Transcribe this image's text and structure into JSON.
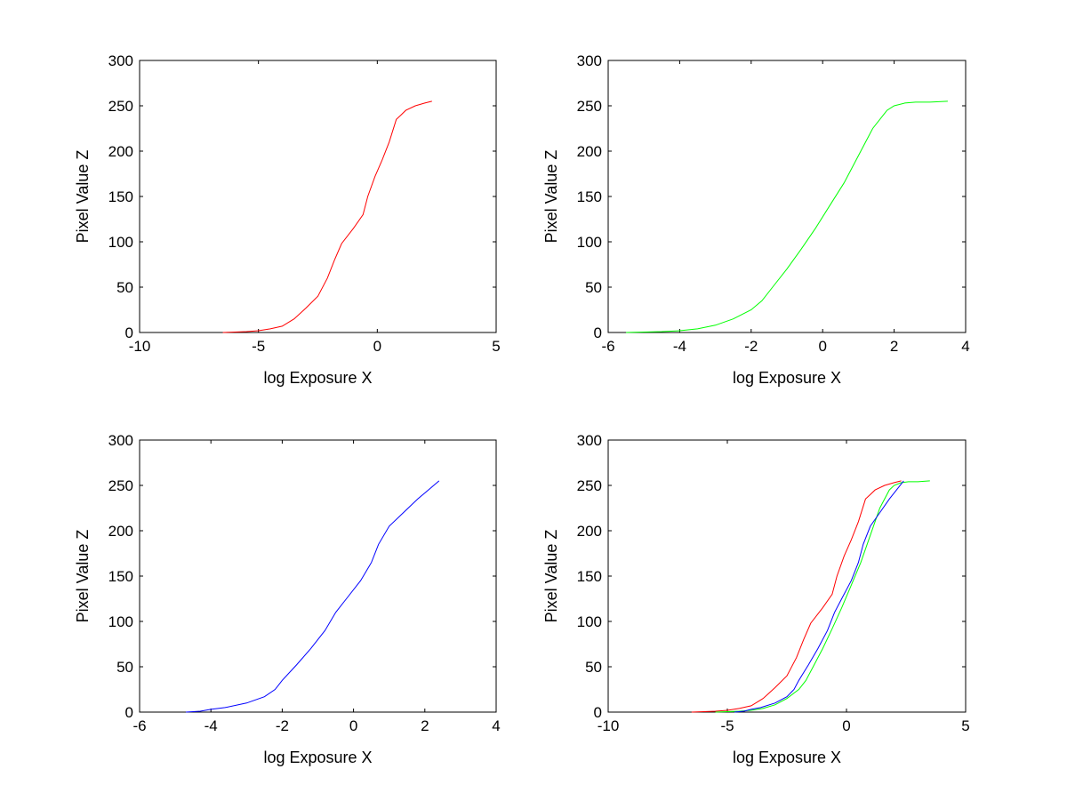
{
  "figure": {
    "background": "#ffffff"
  },
  "chart_data": [
    {
      "type": "line",
      "xlabel": "log Exposure X",
      "ylabel": "Pixel Value Z",
      "xlim": [
        -10,
        5
      ],
      "ylim": [
        0,
        300
      ],
      "xticks": [
        -10,
        -5,
        0,
        5
      ],
      "yticks": [
        0,
        50,
        100,
        150,
        200,
        250,
        300
      ],
      "grid": false,
      "series": [
        {
          "color": "#ff0000",
          "x": [
            -6.5,
            -5.5,
            -5.0,
            -4.5,
            -4.0,
            -3.5,
            -3.0,
            -2.5,
            -2.1,
            -1.8,
            -1.5,
            -1.0,
            -0.6,
            -0.4,
            -0.1,
            0.2,
            0.5,
            0.8,
            1.0,
            1.2,
            1.6,
            2.0,
            2.3
          ],
          "y": [
            0,
            1,
            2,
            4,
            7,
            15,
            27,
            40,
            60,
            80,
            98,
            115,
            130,
            150,
            172,
            190,
            210,
            235,
            240,
            245,
            250,
            253,
            255
          ]
        }
      ]
    },
    {
      "type": "line",
      "xlabel": "log Exposure X",
      "ylabel": "Pixel Value Z",
      "xlim": [
        -6,
        4
      ],
      "ylim": [
        0,
        300
      ],
      "xticks": [
        -6,
        -4,
        -2,
        0,
        2,
        4
      ],
      "yticks": [
        0,
        50,
        100,
        150,
        200,
        250,
        300
      ],
      "grid": false,
      "series": [
        {
          "color": "#00ff00",
          "x": [
            -5.5,
            -5.0,
            -4.5,
            -4.0,
            -3.5,
            -3.0,
            -2.5,
            -2.0,
            -1.7,
            -1.4,
            -1.0,
            -0.6,
            -0.2,
            0.2,
            0.6,
            1.0,
            1.4,
            1.8,
            2.0,
            2.3,
            2.6,
            3.0,
            3.5
          ],
          "y": [
            0,
            0.5,
            1,
            2,
            4,
            8,
            15,
            25,
            35,
            50,
            70,
            92,
            115,
            140,
            165,
            195,
            225,
            245,
            250,
            253,
            254,
            254,
            255
          ]
        }
      ]
    },
    {
      "type": "line",
      "xlabel": "log Exposure X",
      "ylabel": "Pixel Value Z",
      "xlim": [
        -6,
        4
      ],
      "ylim": [
        0,
        300
      ],
      "xticks": [
        -6,
        -4,
        -2,
        0,
        2,
        4
      ],
      "yticks": [
        0,
        50,
        100,
        150,
        200,
        250,
        300
      ],
      "grid": false,
      "series": [
        {
          "color": "#0000ff",
          "x": [
            -4.7,
            -4.3,
            -4.0,
            -3.6,
            -3.0,
            -2.5,
            -2.2,
            -2.0,
            -1.6,
            -1.2,
            -0.8,
            -0.5,
            -0.2,
            0.2,
            0.5,
            0.7,
            1.0,
            1.4,
            1.8,
            2.1,
            2.4
          ],
          "y": [
            0,
            1,
            3,
            5,
            10,
            17,
            25,
            35,
            52,
            70,
            90,
            110,
            125,
            145,
            165,
            185,
            205,
            220,
            235,
            245,
            255
          ]
        }
      ]
    },
    {
      "type": "line",
      "xlabel": "log Exposure X",
      "ylabel": "Pixel Value Z",
      "xlim": [
        -10,
        5
      ],
      "ylim": [
        0,
        300
      ],
      "xticks": [
        -10,
        -5,
        0,
        5
      ],
      "yticks": [
        0,
        50,
        100,
        150,
        200,
        250,
        300
      ],
      "grid": false,
      "series": [
        {
          "color": "#ff0000",
          "x": [
            -6.5,
            -5.5,
            -5.0,
            -4.5,
            -4.0,
            -3.5,
            -3.0,
            -2.5,
            -2.1,
            -1.8,
            -1.5,
            -1.0,
            -0.6,
            -0.4,
            -0.1,
            0.2,
            0.5,
            0.8,
            1.0,
            1.2,
            1.6,
            2.0,
            2.3
          ],
          "y": [
            0,
            1,
            2,
            4,
            7,
            15,
            27,
            40,
            60,
            80,
            98,
            115,
            130,
            150,
            172,
            190,
            210,
            235,
            240,
            245,
            250,
            253,
            255
          ]
        },
        {
          "color": "#00ff00",
          "x": [
            -5.5,
            -5.0,
            -4.5,
            -4.0,
            -3.5,
            -3.0,
            -2.5,
            -2.0,
            -1.7,
            -1.4,
            -1.0,
            -0.6,
            -0.2,
            0.2,
            0.6,
            1.0,
            1.4,
            1.8,
            2.0,
            2.3,
            2.6,
            3.0,
            3.5
          ],
          "y": [
            0,
            0.5,
            1,
            2,
            4,
            8,
            15,
            25,
            35,
            50,
            70,
            92,
            115,
            140,
            165,
            195,
            225,
            245,
            250,
            253,
            254,
            254,
            255
          ]
        },
        {
          "color": "#0000ff",
          "x": [
            -4.7,
            -4.3,
            -4.0,
            -3.6,
            -3.0,
            -2.5,
            -2.2,
            -2.0,
            -1.6,
            -1.2,
            -0.8,
            -0.5,
            -0.2,
            0.2,
            0.5,
            0.7,
            1.0,
            1.4,
            1.8,
            2.1,
            2.4
          ],
          "y": [
            0,
            1,
            3,
            5,
            10,
            17,
            25,
            35,
            52,
            70,
            90,
            110,
            125,
            145,
            165,
            185,
            205,
            220,
            235,
            245,
            255
          ]
        }
      ]
    }
  ]
}
